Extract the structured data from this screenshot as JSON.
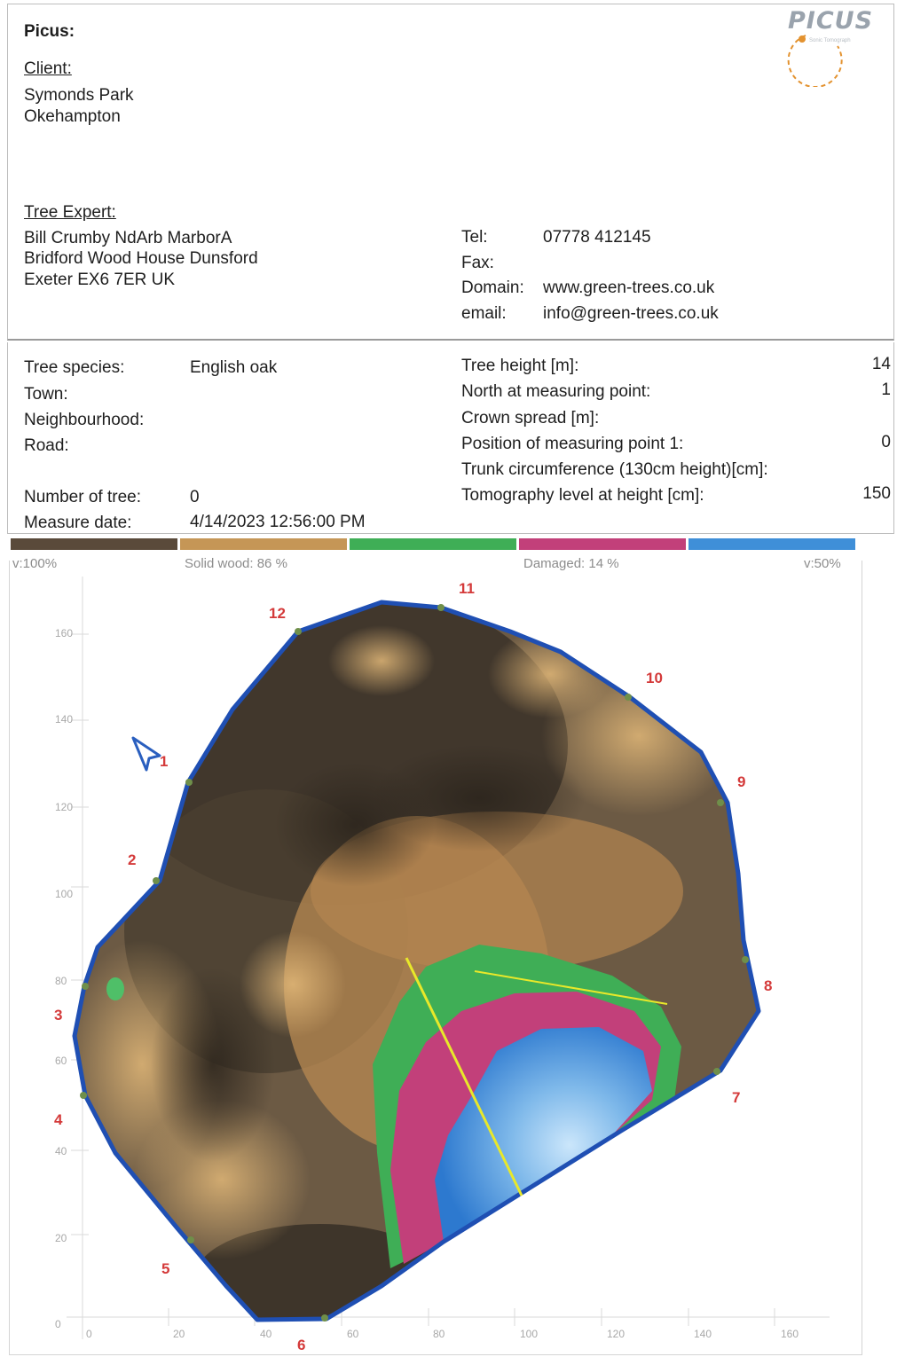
{
  "header": {
    "picus_label": "Picus:",
    "logo_text": "PICUS",
    "logo_subtitle": "Sonic Tomograph"
  },
  "client": {
    "heading": "Client:",
    "line1": "Symonds Park",
    "line2": "Okehampton"
  },
  "expert": {
    "heading": "Tree Expert:",
    "line1": "Bill Crumby NdArb MarborA",
    "line2": "Bridford Wood House  Dunsford",
    "line3": "Exeter EX6 7ER  UK"
  },
  "contact": {
    "tel_label": "Tel:",
    "tel_value": "07778 412145",
    "fax_label": "Fax:",
    "fax_value": "",
    "domain_label": "Domain:",
    "domain_value": "www.green-trees.co.uk",
    "email_label": "email:",
    "email_value": "info@green-trees.co.uk"
  },
  "tree_info": {
    "species_label": "Tree species:",
    "species_value": "English oak",
    "town_label": "Town:",
    "neighbourhood_label": "Neighbourhood:",
    "road_label": "Road:",
    "number_label": "Number of tree:",
    "number_value": "0",
    "date_label": "Measure date:",
    "date_value": "4/14/2023 12:56:00 PM"
  },
  "measurements": {
    "height_label": "Tree height [m]:",
    "height_value": "14",
    "north_label": "North at measuring point:",
    "north_value": "1",
    "crown_label": "Crown spread [m]:",
    "crown_value": "",
    "position_label": "Position of measuring point 1:",
    "position_value": "0",
    "circumference_label": "Trunk circumference (130cm height)[cm]:",
    "circumference_value": "",
    "level_label": "Tomography level at height [cm]:",
    "level_value": "150"
  },
  "tomogram": {
    "colors": {
      "dark_solid": "#5a4a3a",
      "solid": "#c59656",
      "transition": "#3fae56",
      "damaged": "#c2407a",
      "cavity": "#3f8fd8",
      "outline": "#1f4fb3",
      "marker": "#d43a3a",
      "line": "#e8e82a"
    },
    "scale_left": "v:100%",
    "solid_label": "Solid wood: 86 %",
    "damaged_label": "Damaged: 14 %",
    "scale_right": "v:50%",
    "y_ticks": [
      "160",
      "140",
      "120",
      "100",
      "80",
      "60",
      "40",
      "20",
      "0"
    ],
    "x_ticks": [
      "0",
      "20",
      "40",
      "60",
      "80",
      "100",
      "120",
      "140",
      "160"
    ],
    "measuring_points": [
      "1",
      "2",
      "3",
      "4",
      "5",
      "6",
      "7",
      "8",
      "9",
      "10",
      "11",
      "12"
    ]
  }
}
